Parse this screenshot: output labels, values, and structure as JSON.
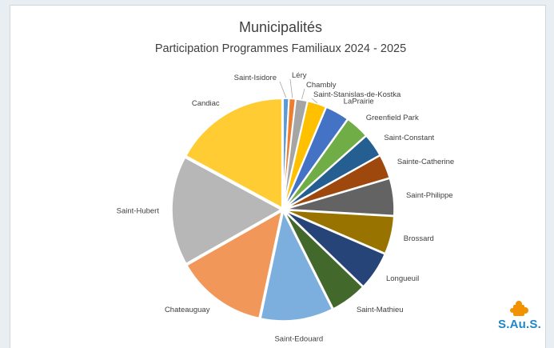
{
  "chart_data": {
    "type": "pie",
    "title": "Municipalités",
    "subtitle": "Participation Programmes Familiaux 2024 - 2025",
    "categories": [
      "Saint-Isidore",
      "Léry",
      "Chambly",
      "Saint-Stanislas-de-Kostka",
      "LaPrairie",
      "Greenfield Park",
      "Saint-Constant",
      "Sainte-Catherine",
      "Saint-Philippe",
      "Brossard",
      "Longueuil",
      "Saint-Mathieu",
      "Saint-Edouard",
      "Chateauguay",
      "Saint-Hubert",
      "Candiac"
    ],
    "values": [
      0.8,
      0.9,
      1.6,
      2.6,
      3.3,
      3.3,
      3.2,
      3.3,
      5.1,
      5.2,
      5.3,
      5.0,
      10.0,
      12.5,
      15.0,
      15.9
    ],
    "colors": [
      "#5b9bd5",
      "#ed7d31",
      "#a5a5a5",
      "#ffc000",
      "#4472c4",
      "#70ad47",
      "#255e91",
      "#9e480e",
      "#636363",
      "#997300",
      "#264478",
      "#43682b",
      "#7cafdd",
      "#f1975a",
      "#b7b7b7",
      "#ffcd33"
    ],
    "legend": "none"
  },
  "logo": {
    "text": "S.Au.S.",
    "icon": "puzzle-icon",
    "icon_color": "#f39200"
  }
}
